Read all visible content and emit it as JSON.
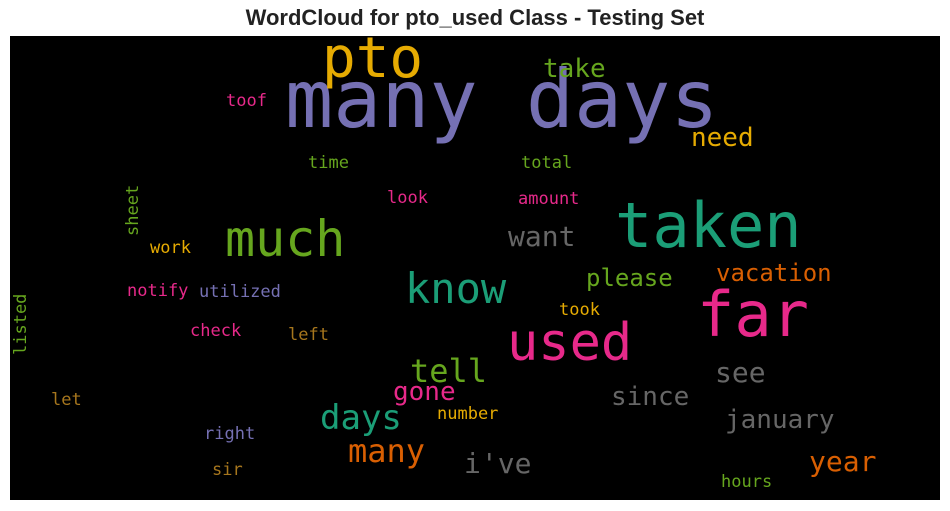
{
  "title": "WordCloud for pto_used Class - Testing Set",
  "chart_data": {
    "type": "wordcloud",
    "title": "WordCloud for pto_used Class - Testing Set",
    "background": "#000000",
    "colormap": "Dark2",
    "words": [
      {
        "text": "many days",
        "color": "#7570b3"
      },
      {
        "text": "pto",
        "color": "#e6ab02"
      },
      {
        "text": "taken",
        "color": "#1b9e77"
      },
      {
        "text": "far",
        "color": "#e7298a"
      },
      {
        "text": "used",
        "color": "#e7298a"
      },
      {
        "text": "much",
        "color": "#66a61e"
      },
      {
        "text": "know",
        "color": "#1b9e77"
      },
      {
        "text": "take",
        "color": "#66a61e"
      },
      {
        "text": "need",
        "color": "#e6ab02"
      },
      {
        "text": "want",
        "color": "#666666"
      },
      {
        "text": "vacation",
        "color": "#d95f02"
      },
      {
        "text": "please",
        "color": "#66a61e"
      },
      {
        "text": "tell",
        "color": "#66a61e"
      },
      {
        "text": "see",
        "color": "#666666"
      },
      {
        "text": "days",
        "color": "#1b9e77"
      },
      {
        "text": "gone",
        "color": "#e7298a"
      },
      {
        "text": "since",
        "color": "#666666"
      },
      {
        "text": "january",
        "color": "#666666"
      },
      {
        "text": "many",
        "color": "#d95f02"
      },
      {
        "text": "i've",
        "color": "#666666"
      },
      {
        "text": "year",
        "color": "#d95f02"
      },
      {
        "text": "toof",
        "color": "#e7298a"
      },
      {
        "text": "time",
        "color": "#66a61e"
      },
      {
        "text": "total",
        "color": "#66a61e"
      },
      {
        "text": "look",
        "color": "#e7298a"
      },
      {
        "text": "amount",
        "color": "#e7298a"
      },
      {
        "text": "sheet",
        "color": "#66a61e"
      },
      {
        "text": "work",
        "color": "#e6ab02"
      },
      {
        "text": "notify",
        "color": "#e7298a"
      },
      {
        "text": "utilized",
        "color": "#7570b3"
      },
      {
        "text": "took",
        "color": "#e6ab02"
      },
      {
        "text": "check",
        "color": "#e7298a"
      },
      {
        "text": "left",
        "color": "#a6761d"
      },
      {
        "text": "listed",
        "color": "#66a61e"
      },
      {
        "text": "let",
        "color": "#a6761d"
      },
      {
        "text": "number",
        "color": "#e6ab02"
      },
      {
        "text": "right",
        "color": "#7570b3"
      },
      {
        "text": "sir",
        "color": "#a6761d"
      },
      {
        "text": "hours",
        "color": "#66a61e"
      }
    ]
  }
}
